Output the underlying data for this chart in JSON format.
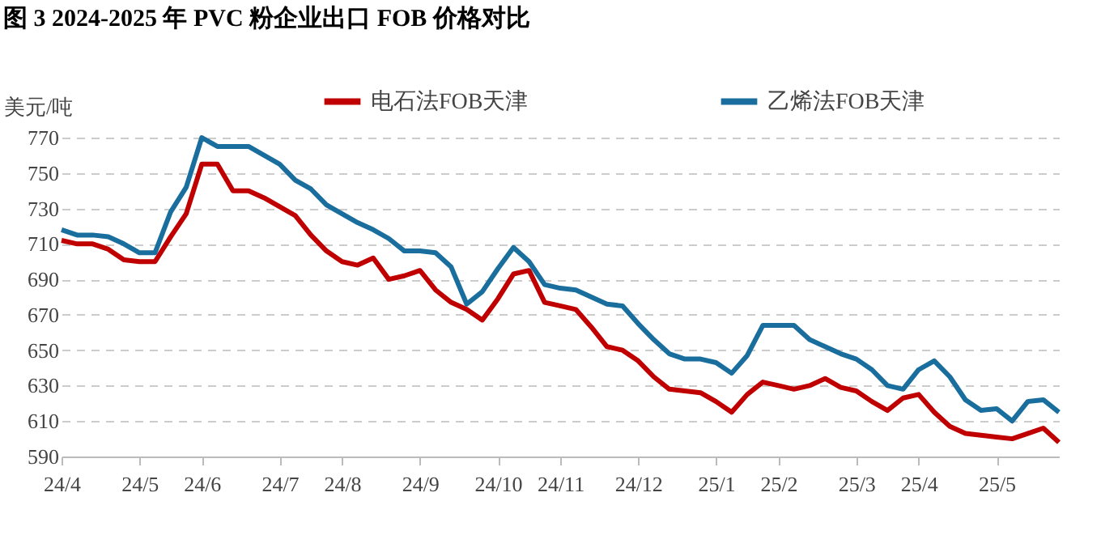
{
  "chart_data": {
    "type": "line",
    "title": "图 3   2024-2025 年 PVC 粉企业出口 FOB 价格对比",
    "ylabel": "美元/吨",
    "categories": [
      "24/4",
      null,
      null,
      null,
      null,
      "24/5",
      null,
      null,
      null,
      "24/6",
      null,
      null,
      null,
      null,
      "24/7",
      null,
      null,
      null,
      "24/8",
      null,
      null,
      null,
      null,
      "24/9",
      null,
      null,
      null,
      null,
      "24/10",
      null,
      null,
      null,
      "24/11",
      null,
      null,
      null,
      null,
      "24/12",
      null,
      null,
      null,
      null,
      "25/1",
      null,
      null,
      null,
      "25/2",
      null,
      null,
      null,
      null,
      "25/3",
      null,
      null,
      null,
      "25/4",
      null,
      null,
      null,
      null,
      "25/5",
      null,
      null,
      null,
      null
    ],
    "series": [
      {
        "name": "电石法FOB天津",
        "color": "#c00000",
        "values": [
          712,
          710,
          710,
          707,
          701,
          700,
          700,
          714,
          727,
          755,
          755,
          740,
          740,
          736,
          731,
          726,
          715,
          706,
          700,
          698,
          702,
          690,
          692,
          695,
          684,
          677,
          673,
          667,
          679,
          693,
          695,
          677,
          675,
          673,
          663,
          652,
          650,
          644,
          635,
          628,
          627,
          626,
          621,
          615,
          625,
          632,
          630,
          628,
          630,
          634,
          629,
          627,
          621,
          616,
          623,
          625,
          615,
          607,
          603,
          602,
          601,
          600,
          603,
          606,
          598
        ]
      },
      {
        "name": "乙烯法FOB天津",
        "color": "#1a6e9e",
        "values": [
          718,
          715,
          715,
          714,
          710,
          705,
          705,
          728,
          742,
          770,
          765,
          765,
          765,
          760,
          755,
          746,
          741,
          732,
          727,
          722,
          718,
          713,
          706,
          706,
          705,
          697,
          676,
          683,
          696,
          708,
          700,
          687,
          685,
          684,
          680,
          676,
          675,
          665,
          656,
          648,
          645,
          645,
          643,
          637,
          647,
          664,
          664,
          664,
          656,
          652,
          648,
          645,
          639,
          630,
          628,
          639,
          644,
          635,
          622,
          616,
          617,
          610,
          621,
          622,
          615
        ]
      }
    ],
    "ylim": [
      590,
      770
    ],
    "yticks": [
      590,
      610,
      630,
      650,
      670,
      690,
      710,
      730,
      750,
      770
    ],
    "grid": "y",
    "legend": "top",
    "line_style": "solid",
    "marker": "none"
  }
}
